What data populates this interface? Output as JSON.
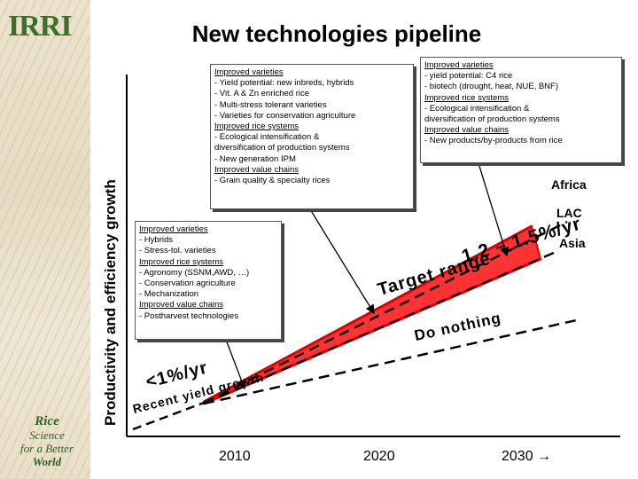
{
  "header": {
    "title": "New technologies pipeline",
    "logo_text": "IRRI"
  },
  "footer_logo": {
    "lines": [
      "Rice",
      "Science",
      "for a Better",
      "World"
    ]
  },
  "axis": {
    "y_label": "Productivity and efficiency growth",
    "x_ticks": [
      "2010",
      "2020",
      "2030 →"
    ]
  },
  "boxes": {
    "box_2010": {
      "items": [
        {
          "text": "Improved varieties",
          "heading": true
        },
        {
          "text": "- Hybrids"
        },
        {
          "text": "- Stress-tol. varieties"
        },
        {
          "text": "Improved rice systems",
          "heading": true
        },
        {
          "text": "- Agronomy (SSNM,AWD, …)"
        },
        {
          "text": "- Conservation agriculture"
        },
        {
          "text": "- Mechanization"
        },
        {
          "text": "Improved value chains",
          "heading": true
        },
        {
          "text": "- Postharvest technologies"
        }
      ]
    },
    "box_2020": {
      "items": [
        {
          "text": "Improved varieties",
          "heading": true
        },
        {
          "text": "- Yield potential: new inbreds, hybrids"
        },
        {
          "text": "- Vit. A & Zn enriched rice"
        },
        {
          "text": "- Multi-stress tolerant varieties"
        },
        {
          "text": "- Varieties for conservation agriculture"
        },
        {
          "text": "Improved rice systems",
          "heading": true
        },
        {
          "text": "- Ecological intensification &"
        },
        {
          "text": "diversification  of  production systems"
        },
        {
          "text": "- New generation IPM"
        },
        {
          "text": "Improved value chains",
          "heading": true
        },
        {
          "text": "- Grain quality & specialty rices"
        }
      ]
    },
    "box_2030": {
      "items": [
        {
          "text": "Improved varieties",
          "heading": true
        },
        {
          "text": "- yield potential: C4 rice"
        },
        {
          "text": "- biotech (drought, heat, NUE, BNF)"
        },
        {
          "text": "Improved rice systems",
          "heading": true
        },
        {
          "text": "- Ecological intensification &"
        },
        {
          "text": "diversification  of  production systems"
        },
        {
          "text": "Improved value chains",
          "heading": true
        },
        {
          "text": "- New products/by-products from rice"
        }
      ]
    }
  },
  "regions": {
    "africa": "Africa",
    "lac": "LAC",
    "asia": "Asia"
  },
  "annotations": {
    "target_range": "Target range",
    "target_rate": "1.2 – 1.5%/yr",
    "do_nothing": "Do nothing",
    "baseline_rate": "<1%/yr",
    "baseline_growth": "Recent yield growth"
  },
  "colors": {
    "fan_red": "#ff3333",
    "arrow": "#000000",
    "dashed": "#000000"
  }
}
